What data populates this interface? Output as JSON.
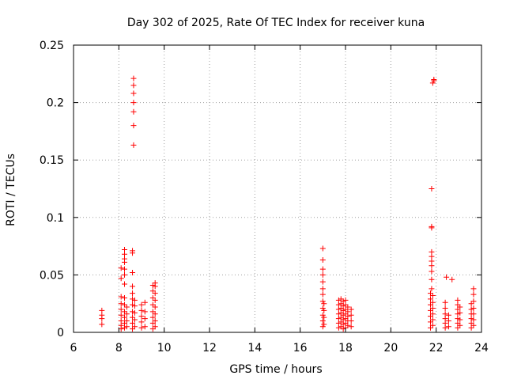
{
  "chart_data": {
    "type": "scatter",
    "title": "Day 302 of 2025, Rate Of TEC Index for receiver kuna",
    "xlabel": "GPS time / hours",
    "ylabel": "ROTI / TECUs",
    "xlim": [
      6,
      24
    ],
    "ylim": [
      0,
      0.25
    ],
    "x_ticks": [
      "6",
      "8",
      "10",
      "12",
      "14",
      "16",
      "18",
      "20",
      "22",
      "24"
    ],
    "y_ticks": [
      "0",
      "0.05",
      "0.1",
      "0.15",
      "0.2",
      "0.25"
    ],
    "grid": true,
    "marker": "+",
    "color": "#ff0000",
    "series": [
      {
        "points": [
          [
            7.25,
            0.007
          ],
          [
            7.25,
            0.012
          ],
          [
            7.25,
            0.015
          ],
          [
            7.25,
            0.019
          ],
          [
            8.1,
            0.003
          ],
          [
            8.1,
            0.006
          ],
          [
            8.1,
            0.01
          ],
          [
            8.1,
            0.015
          ],
          [
            8.1,
            0.02
          ],
          [
            8.1,
            0.025
          ],
          [
            8.1,
            0.031
          ],
          [
            8.1,
            0.047
          ],
          [
            8.1,
            0.056
          ],
          [
            8.25,
            0.004
          ],
          [
            8.25,
            0.008
          ],
          [
            8.25,
            0.013
          ],
          [
            8.25,
            0.018
          ],
          [
            8.25,
            0.024
          ],
          [
            8.25,
            0.03
          ],
          [
            8.25,
            0.042
          ],
          [
            8.25,
            0.05
          ],
          [
            8.25,
            0.055
          ],
          [
            8.25,
            0.061
          ],
          [
            8.25,
            0.064
          ],
          [
            8.25,
            0.068
          ],
          [
            8.25,
            0.072
          ],
          [
            8.35,
            0.005
          ],
          [
            8.35,
            0.01
          ],
          [
            8.35,
            0.016
          ],
          [
            8.35,
            0.022
          ],
          [
            8.6,
            0.003
          ],
          [
            8.6,
            0.008
          ],
          [
            8.6,
            0.013
          ],
          [
            8.6,
            0.018
          ],
          [
            8.6,
            0.024
          ],
          [
            8.6,
            0.029
          ],
          [
            8.6,
            0.034
          ],
          [
            8.6,
            0.04
          ],
          [
            8.6,
            0.052
          ],
          [
            8.6,
            0.069
          ],
          [
            8.6,
            0.071
          ],
          [
            8.65,
            0.163
          ],
          [
            8.65,
            0.18
          ],
          [
            8.65,
            0.192
          ],
          [
            8.65,
            0.2
          ],
          [
            8.65,
            0.208
          ],
          [
            8.65,
            0.215
          ],
          [
            8.65,
            0.221
          ],
          [
            8.7,
            0.005
          ],
          [
            8.7,
            0.011
          ],
          [
            8.7,
            0.017
          ],
          [
            8.7,
            0.023
          ],
          [
            8.7,
            0.028
          ],
          [
            9.0,
            0.004
          ],
          [
            9.0,
            0.009
          ],
          [
            9.0,
            0.014
          ],
          [
            9.0,
            0.019
          ],
          [
            9.0,
            0.024
          ],
          [
            9.15,
            0.005
          ],
          [
            9.15,
            0.012
          ],
          [
            9.15,
            0.018
          ],
          [
            9.15,
            0.026
          ],
          [
            9.5,
            0.003
          ],
          [
            9.5,
            0.008
          ],
          [
            9.5,
            0.013
          ],
          [
            9.5,
            0.018
          ],
          [
            9.5,
            0.024
          ],
          [
            9.5,
            0.03
          ],
          [
            9.5,
            0.036
          ],
          [
            9.5,
            0.041
          ],
          [
            9.6,
            0.005
          ],
          [
            9.6,
            0.01
          ],
          [
            9.6,
            0.016
          ],
          [
            9.6,
            0.022
          ],
          [
            9.6,
            0.028
          ],
          [
            9.6,
            0.034
          ],
          [
            9.6,
            0.04
          ],
          [
            9.6,
            0.043
          ],
          [
            17.0,
            0.005
          ],
          [
            17.0,
            0.01
          ],
          [
            17.0,
            0.015
          ],
          [
            17.0,
            0.021
          ],
          [
            17.0,
            0.027
          ],
          [
            17.0,
            0.033
          ],
          [
            17.0,
            0.038
          ],
          [
            17.0,
            0.044
          ],
          [
            17.0,
            0.05
          ],
          [
            17.0,
            0.055
          ],
          [
            17.0,
            0.063
          ],
          [
            17.0,
            0.073
          ],
          [
            17.05,
            0.007
          ],
          [
            17.05,
            0.013
          ],
          [
            17.05,
            0.019
          ],
          [
            17.05,
            0.025
          ],
          [
            17.7,
            0.004
          ],
          [
            17.7,
            0.008
          ],
          [
            17.7,
            0.012
          ],
          [
            17.7,
            0.016
          ],
          [
            17.7,
            0.02
          ],
          [
            17.7,
            0.024
          ],
          [
            17.7,
            0.028
          ],
          [
            17.8,
            0.005
          ],
          [
            17.8,
            0.009
          ],
          [
            17.8,
            0.013
          ],
          [
            17.8,
            0.017
          ],
          [
            17.8,
            0.021
          ],
          [
            17.8,
            0.025
          ],
          [
            17.8,
            0.029
          ],
          [
            17.9,
            0.003
          ],
          [
            17.9,
            0.007
          ],
          [
            17.9,
            0.011
          ],
          [
            17.9,
            0.015
          ],
          [
            17.9,
            0.019
          ],
          [
            17.9,
            0.023
          ],
          [
            17.9,
            0.027
          ],
          [
            18.0,
            0.004
          ],
          [
            18.0,
            0.008
          ],
          [
            18.0,
            0.012
          ],
          [
            18.0,
            0.016
          ],
          [
            18.0,
            0.02
          ],
          [
            18.0,
            0.024
          ],
          [
            18.0,
            0.028
          ],
          [
            18.1,
            0.006
          ],
          [
            18.1,
            0.01
          ],
          [
            18.1,
            0.014
          ],
          [
            18.1,
            0.018
          ],
          [
            18.1,
            0.022
          ],
          [
            18.25,
            0.005
          ],
          [
            18.25,
            0.01
          ],
          [
            18.25,
            0.015
          ],
          [
            18.25,
            0.02
          ],
          [
            21.75,
            0.004
          ],
          [
            21.75,
            0.009
          ],
          [
            21.75,
            0.014
          ],
          [
            21.75,
            0.019
          ],
          [
            21.75,
            0.024
          ],
          [
            21.75,
            0.029
          ],
          [
            21.75,
            0.034
          ],
          [
            21.8,
            0.038
          ],
          [
            21.8,
            0.046
          ],
          [
            21.8,
            0.053
          ],
          [
            21.8,
            0.058
          ],
          [
            21.8,
            0.062
          ],
          [
            21.8,
            0.066
          ],
          [
            21.8,
            0.07
          ],
          [
            21.8,
            0.091
          ],
          [
            21.8,
            0.092
          ],
          [
            21.8,
            0.125
          ],
          [
            21.85,
            0.006
          ],
          [
            21.85,
            0.011
          ],
          [
            21.85,
            0.016
          ],
          [
            21.85,
            0.021
          ],
          [
            21.85,
            0.026
          ],
          [
            21.85,
            0.032
          ],
          [
            21.85,
            0.217
          ],
          [
            21.9,
            0.219
          ],
          [
            21.9,
            0.22
          ],
          [
            22.4,
            0.004
          ],
          [
            22.4,
            0.008
          ],
          [
            22.4,
            0.012
          ],
          [
            22.4,
            0.016
          ],
          [
            22.4,
            0.021
          ],
          [
            22.4,
            0.026
          ],
          [
            22.45,
            0.048
          ],
          [
            22.7,
            0.046
          ],
          [
            22.55,
            0.005
          ],
          [
            22.55,
            0.01
          ],
          [
            22.55,
            0.015
          ],
          [
            22.95,
            0.004
          ],
          [
            22.95,
            0.008
          ],
          [
            22.95,
            0.012
          ],
          [
            22.95,
            0.016
          ],
          [
            22.95,
            0.02
          ],
          [
            22.95,
            0.024
          ],
          [
            22.95,
            0.028
          ],
          [
            23.05,
            0.006
          ],
          [
            23.05,
            0.011
          ],
          [
            23.05,
            0.017
          ],
          [
            23.05,
            0.022
          ],
          [
            23.55,
            0.004
          ],
          [
            23.55,
            0.008
          ],
          [
            23.55,
            0.012
          ],
          [
            23.55,
            0.016
          ],
          [
            23.55,
            0.02
          ],
          [
            23.55,
            0.025
          ],
          [
            23.65,
            0.006
          ],
          [
            23.65,
            0.011
          ],
          [
            23.65,
            0.016
          ],
          [
            23.65,
            0.021
          ],
          [
            23.65,
            0.027
          ],
          [
            23.65,
            0.033
          ],
          [
            23.65,
            0.038
          ]
        ]
      }
    ]
  }
}
